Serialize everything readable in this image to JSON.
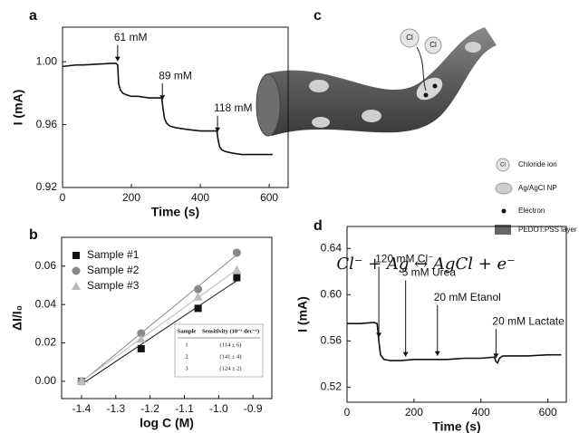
{
  "chart_data": [
    {
      "type": "line",
      "label": "a",
      "xlabel": "Time (s)",
      "ylabel": "I (mA)",
      "xlim": [
        0,
        655
      ],
      "ylim": [
        0.92,
        1.022
      ],
      "xticks": [
        0,
        200,
        400,
        600
      ],
      "yticks": [
        0.92,
        0.96,
        {
          "value": 1,
          "label": "1.00"
        }
      ],
      "x": [
        0,
        20,
        40,
        60,
        80,
        100,
        120,
        140,
        155,
        160,
        163,
        168,
        175,
        185,
        200,
        220,
        250,
        280,
        288,
        292,
        296,
        302,
        312,
        330,
        360,
        400,
        440,
        448,
        452,
        456,
        462,
        472,
        490,
        520,
        560,
        610
      ],
      "series": [
        {
          "color": "#111111",
          "values": [
            0.997,
            0.9975,
            0.998,
            0.998,
            0.9982,
            0.9985,
            0.9987,
            0.999,
            0.999,
            0.998,
            0.986,
            0.982,
            0.98,
            0.979,
            0.978,
            0.978,
            0.977,
            0.977,
            0.977,
            0.97,
            0.964,
            0.961,
            0.959,
            0.958,
            0.957,
            0.956,
            0.956,
            0.956,
            0.95,
            0.946,
            0.944,
            0.943,
            0.942,
            0.941,
            0.941,
            0.941
          ]
        }
      ],
      "annotations": [
        {
          "text": "61 mM",
          "x": 160
        },
        {
          "text": "89 mM",
          "x": 290
        },
        {
          "text": "118 mM",
          "x": 450
        }
      ]
    },
    {
      "type": "scatter",
      "label": "b",
      "xlabel": "log C (M)",
      "ylabel": "ΔI/I₀",
      "xlim": [
        -1.458,
        -0.845
      ],
      "ylim": [
        -0.009,
        0.075
      ],
      "xticks": [
        -1.4,
        -1.3,
        -1.2,
        -1.1,
        {
          "value": -1,
          "label": "-1.0"
        },
        -0.9
      ],
      "yticks": [
        {
          "value": 0,
          "label": "0.00"
        },
        0.02,
        0.04,
        0.06
      ],
      "x": [
        -1.4,
        -1.226,
        -1.06,
        -0.947
      ],
      "legend": "upper left",
      "series": [
        {
          "name": "Sample #1",
          "color": "#111111",
          "marker": "square",
          "values": [
            0,
            0.017,
            0.038,
            0.054
          ]
        },
        {
          "name": "Sample #2",
          "color": "#888888",
          "marker": "circle",
          "values": [
            0,
            0.025,
            0.048,
            0.067
          ]
        },
        {
          "name": "Sample #3",
          "color": "#bbbbbb",
          "marker": "triangle",
          "values": [
            0,
            0.022,
            0.044,
            0.058
          ]
        }
      ],
      "table": {
        "columns": [
          "Sample",
          "Sensitivity (10⁻³ dec⁻¹)"
        ],
        "rows": [
          [
            "1",
            "(114 ± 6)"
          ],
          [
            "2",
            "(141 ± 4)"
          ],
          [
            "3",
            "(124 ± 2)"
          ]
        ]
      }
    },
    {
      "type": "line",
      "label": "d",
      "xlabel": "Time (s)",
      "ylabel": "I (mA)",
      "xlim": [
        0,
        655
      ],
      "ylim": [
        0.507,
        0.659
      ],
      "xticks": [
        0,
        200,
        400,
        600
      ],
      "yticks": [
        0.52,
        0.56,
        {
          "value": 0.6,
          "label": "0.60"
        },
        0.64
      ],
      "x": [
        0,
        40,
        80,
        90,
        95,
        100,
        110,
        130,
        160,
        200,
        250,
        300,
        350,
        400,
        440,
        445,
        450,
        455,
        465,
        490,
        540,
        600,
        640
      ],
      "series": [
        {
          "color": "#111111",
          "values": [
            0.575,
            0.575,
            0.576,
            0.575,
            0.56,
            0.548,
            0.544,
            0.543,
            0.543,
            0.544,
            0.544,
            0.544,
            0.545,
            0.545,
            0.546,
            0.542,
            0.541,
            0.545,
            0.547,
            0.547,
            0.547,
            0.548,
            0.548
          ]
        }
      ],
      "annotations": [
        {
          "text": "120 mM Cl⁻",
          "x": 95
        },
        {
          "text": "5 mM Urea",
          "x": 175
        },
        {
          "text": "20 mM Etanol",
          "x": 270
        },
        {
          "text": "20 mM Lactate",
          "x": 445
        }
      ]
    }
  ],
  "diagram": {
    "label": "c",
    "ion_symbol": "Cl",
    "legend": [
      "Chloride ion",
      "Ag/AgCl NP",
      "Electron",
      "PEDOT:PSS layer"
    ],
    "equation": "Cl⁻ + Ag ↔ AgCl + e⁻"
  }
}
